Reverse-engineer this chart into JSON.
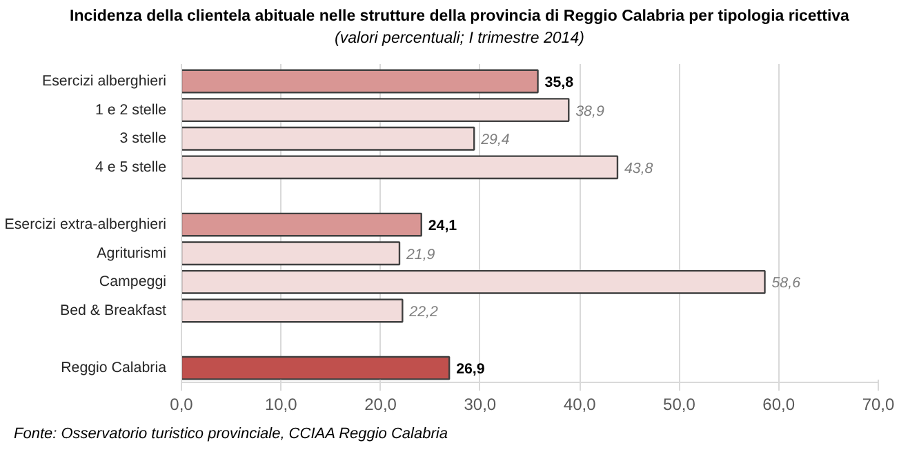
{
  "chart_data": {
    "type": "bar",
    "orientation": "horizontal",
    "title": "Incidenza della clientela abituale nelle strutture della provincia di Reggio Calabria per tipologia ricettiva",
    "subtitle": "(valori percentuali; I trimestre  2014)",
    "categories": [
      "Esercizi alberghieri",
      "1 e 2 stelle",
      "3 stelle",
      "4 e 5 stelle",
      null,
      "Esercizi extra-alberghieri",
      "Agriturismi",
      "Campeggi",
      "Bed & Breakfast",
      null,
      "Reggio Calabria"
    ],
    "values": [
      35.8,
      38.9,
      29.4,
      43.8,
      null,
      24.1,
      21.9,
      58.6,
      22.2,
      null,
      26.9
    ],
    "value_labels": [
      "35,8",
      "38,9",
      "29,4",
      "43,8",
      null,
      "24,1",
      "21,9",
      "58,6",
      "22,2",
      null,
      "26,9"
    ],
    "colors": [
      "#d99694",
      "#f2dcdb",
      "#f2dcdb",
      "#f2dcdb",
      "#f2dcdb",
      "#d99694",
      "#f2dcdb",
      "#f2dcdb",
      "#f2dcdb",
      "#f2dcdb",
      "#c0504d"
    ],
    "xlim": [
      0,
      70
    ],
    "xticks": [
      {
        "value": 0,
        "label": "0,0"
      },
      {
        "value": 10,
        "label": "10,0"
      },
      {
        "value": 20,
        "label": "20,0"
      },
      {
        "value": 30,
        "label": "30,0"
      },
      {
        "value": 40,
        "label": "40,0"
      },
      {
        "value": 50,
        "label": "50,0"
      },
      {
        "value": 60,
        "label": "60,0"
      },
      {
        "value": 70,
        "label": "70,0"
      }
    ],
    "grid": "x",
    "annotations": [
      "Fonte: Osservatorio turistico provinciale, CCIAA Reggio Calabria"
    ]
  }
}
